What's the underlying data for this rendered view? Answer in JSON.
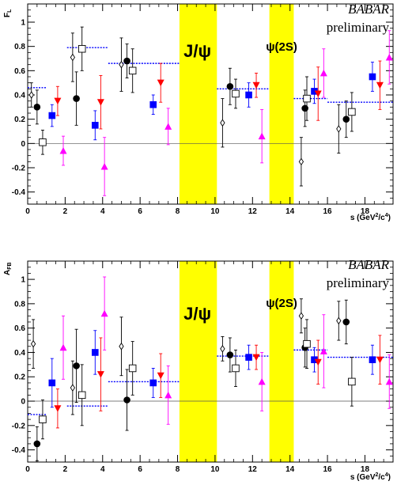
{
  "colors": {
    "band": "#ffff00",
    "black": "#000000",
    "blue": "#0000ff",
    "red": "#ff0000",
    "magenta": "#ff00ff",
    "fit_line": "#0000ff",
    "zero_line": "#555555"
  },
  "experiment_label": "BABAR",
  "status_label": "preliminary",
  "chart_data": [
    {
      "type": "scatter",
      "ylabel": "F",
      "ylabel_sub": "L",
      "xlabel": "s (GeV",
      "xlabel_sup": "2",
      "xlabel_mid": "/c",
      "xlabel_sup2": "4",
      "xlabel_end": ")",
      "xlim": [
        0,
        19.5
      ],
      "ylim": [
        -0.5,
        1.15
      ],
      "xticks": [
        "0",
        "2",
        "4",
        "6",
        "8",
        "10",
        "12",
        "14",
        "16",
        "18"
      ],
      "yticks": [
        "-0.4",
        "-0.2",
        "0",
        "0.2",
        "0.4",
        "0.6",
        "0.8",
        "1"
      ],
      "vetoed_regions": [
        {
          "label": "J/ψ",
          "x": [
            8.1,
            10.1
          ]
        },
        {
          "label": "ψ(2S)",
          "x": [
            12.9,
            14.2
          ]
        }
      ],
      "fit_lines": [
        {
          "x": [
            0,
            1.0
          ],
          "y": 0.46
        },
        {
          "x": [
            2.1,
            4.3
          ],
          "y": 0.79
        },
        {
          "x": [
            4.3,
            8.1
          ],
          "y": 0.66
        },
        {
          "x": [
            10.1,
            12.9
          ],
          "y": 0.45
        },
        {
          "x": [
            14.2,
            16.0
          ],
          "y": 0.37
        },
        {
          "x": [
            16.0,
            19.5
          ],
          "y": 0.34
        }
      ],
      "series": [
        {
          "marker": "open-diamond",
          "x": [
            0.2,
            2.4,
            5.0,
            10.4,
            14.6,
            16.6
          ],
          "y": [
            0.4,
            0.71,
            0.65,
            0.17,
            -0.15,
            0.12
          ],
          "err": [
            0.1,
            0.2,
            0.22,
            0.2,
            0.2,
            0.2
          ]
        },
        {
          "marker": "filled-circle",
          "x": [
            0.5,
            2.6,
            5.3,
            10.8,
            14.8,
            17.0
          ],
          "y": [
            0.3,
            0.37,
            0.68,
            0.47,
            0.29,
            0.2
          ],
          "err": [
            0.14,
            0.22,
            0.14,
            0.15,
            0.15,
            0.15
          ]
        },
        {
          "marker": "open-square",
          "x": [
            0.8,
            2.9,
            5.6,
            11.1,
            14.9,
            17.3
          ],
          "y": [
            0.01,
            0.78,
            0.6,
            0.41,
            0.37,
            0.26
          ],
          "err": [
            0.1,
            0.18,
            0.18,
            0.12,
            0.18,
            0.16
          ]
        },
        {
          "marker": "filled-square",
          "x": [
            1.3,
            3.6,
            6.7,
            11.8,
            15.3,
            18.4
          ],
          "y": [
            0.23,
            0.15,
            0.32,
            0.4,
            0.43,
            0.55
          ],
          "err": [
            0.09,
            0.12,
            0.08,
            0.1,
            0.1,
            0.12
          ]
        },
        {
          "marker": "triangle-down",
          "x": [
            1.6,
            3.9,
            7.1,
            12.2,
            15.5,
            18.8
          ],
          "y": [
            0.35,
            0.34,
            0.5,
            0.48,
            0.41,
            0.48
          ],
          "err": [
            0.12,
            0.22,
            0.16,
            0.1,
            0.22,
            0.2
          ]
        },
        {
          "marker": "triangle-up",
          "x": [
            1.9,
            4.1,
            7.5,
            12.5,
            15.8,
            19.3
          ],
          "y": [
            -0.06,
            -0.19,
            0.14,
            0.06,
            0.58,
            0.71
          ],
          "err": [
            0.12,
            0.24,
            0.15,
            0.22,
            0.2,
            0.22
          ]
        }
      ]
    },
    {
      "type": "scatter",
      "ylabel": "A",
      "ylabel_sub": "FB",
      "xlabel": "s (GeV",
      "xlabel_sup": "2",
      "xlabel_mid": "/c",
      "xlabel_sup2": "4",
      "xlabel_end": ")",
      "xlim": [
        0,
        19.5
      ],
      "ylim": [
        -0.5,
        1.15
      ],
      "xticks": [
        "0",
        "2",
        "4",
        "6",
        "8",
        "10",
        "12",
        "14",
        "16",
        "18"
      ],
      "yticks": [
        "-0.4",
        "-0.2",
        "0",
        "0.2",
        "0.4",
        "0.6",
        "0.8",
        "1"
      ],
      "vetoed_regions": [
        {
          "label": "J/ψ",
          "x": [
            8.1,
            10.1
          ]
        },
        {
          "label": "ψ(2S)",
          "x": [
            12.9,
            14.2
          ]
        }
      ],
      "fit_lines": [
        {
          "x": [
            0,
            1.0
          ],
          "y": -0.11
        },
        {
          "x": [
            2.1,
            4.3
          ],
          "y": -0.04
        },
        {
          "x": [
            4.3,
            8.1
          ],
          "y": 0.16
        },
        {
          "x": [
            10.1,
            12.9
          ],
          "y": 0.37
        },
        {
          "x": [
            14.2,
            16.0
          ],
          "y": 0.42
        },
        {
          "x": [
            16.0,
            19.5
          ],
          "y": 0.36
        }
      ],
      "series": [
        {
          "marker": "open-diamond",
          "x": [
            0.3,
            2.4,
            5.0,
            10.4,
            14.6,
            16.6
          ],
          "y": [
            0.47,
            0.11,
            0.45,
            0.43,
            0.7,
            0.66
          ],
          "err": [
            0.2,
            0.22,
            0.24,
            0.1,
            0.14,
            0.16
          ]
        },
        {
          "marker": "filled-circle",
          "x": [
            0.5,
            2.6,
            5.3,
            10.8,
            14.8,
            17.0
          ],
          "y": [
            -0.35,
            0.29,
            0.01,
            0.38,
            0.44,
            0.65
          ],
          "err": [
            0.14,
            0.3,
            0.25,
            0.14,
            0.16,
            0.18
          ]
        },
        {
          "marker": "open-square",
          "x": [
            0.8,
            2.9,
            5.6,
            11.1,
            14.9,
            17.3
          ],
          "y": [
            -0.15,
            0.05,
            0.27,
            0.27,
            0.47,
            0.16
          ],
          "err": [
            0.16,
            0.25,
            0.22,
            0.15,
            0.2,
            0.2
          ]
        },
        {
          "marker": "filled-square",
          "x": [
            1.3,
            3.6,
            6.7,
            11.8,
            15.3,
            18.4
          ],
          "y": [
            0.15,
            0.4,
            0.15,
            0.36,
            0.34,
            0.34
          ],
          "err": [
            0.2,
            0.18,
            0.12,
            0.1,
            0.1,
            0.12
          ]
        },
        {
          "marker": "triangle-down",
          "x": [
            1.6,
            3.9,
            7.1,
            12.2,
            15.5,
            18.8
          ],
          "y": [
            -0.06,
            0.22,
            0.21,
            0.36,
            0.32,
            0.34
          ],
          "err": [
            0.16,
            0.3,
            0.18,
            0.1,
            0.18,
            0.2
          ]
        },
        {
          "marker": "triangle-up",
          "x": [
            1.9,
            4.1,
            7.5,
            12.5,
            15.8,
            19.3
          ],
          "y": [
            0.44,
            0.72,
            0.05,
            0.16,
            0.41,
            0.16
          ],
          "err": [
            0.26,
            0.3,
            0.24,
            0.24,
            0.3,
            0.22
          ]
        }
      ]
    }
  ]
}
